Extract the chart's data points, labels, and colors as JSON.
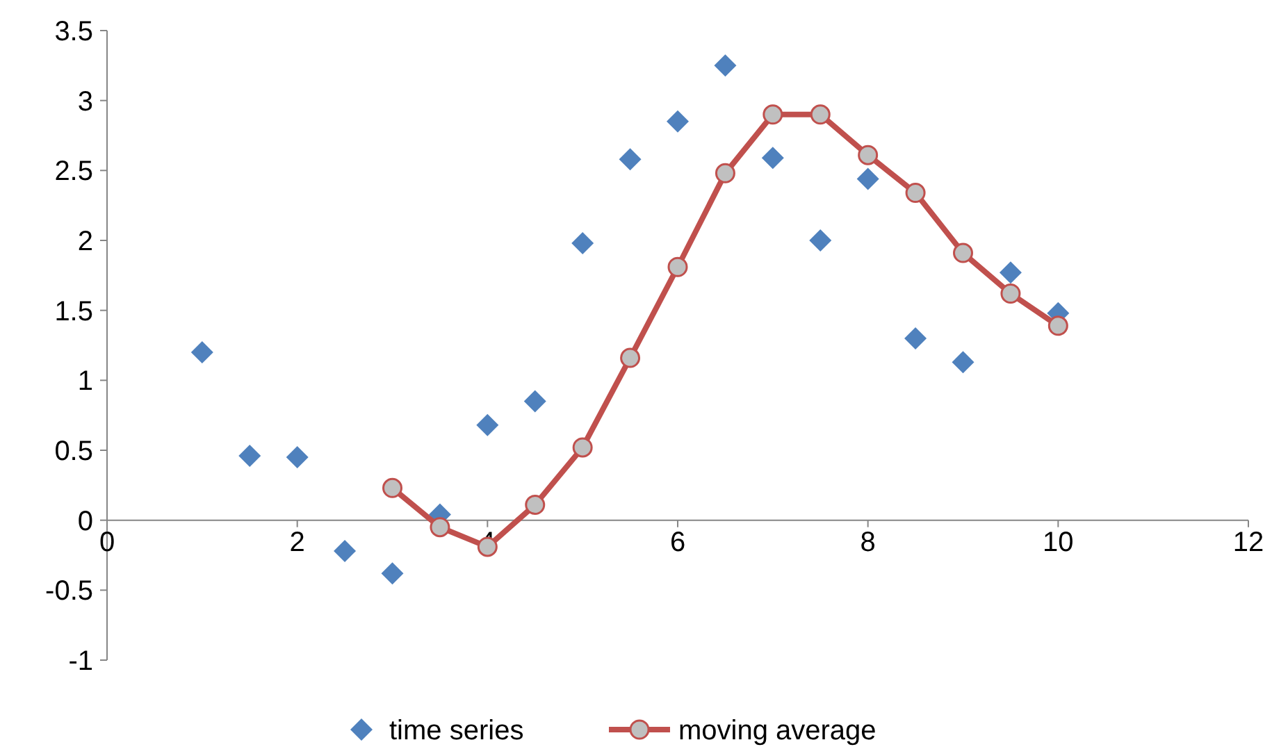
{
  "chart_data": {
    "type": "scatter",
    "xlim": [
      0,
      12
    ],
    "ylim": [
      -1,
      3.5
    ],
    "xticks": [
      0,
      2,
      4,
      6,
      8,
      10,
      12
    ],
    "yticks": [
      -1,
      -0.5,
      0,
      0.5,
      1,
      1.5,
      2,
      2.5,
      3,
      3.5
    ],
    "grid": false,
    "legend": "bottom",
    "series": [
      {
        "name": "time series",
        "marker": "diamond",
        "color": "#4f81bd",
        "x": [
          1,
          1.5,
          2,
          2.5,
          3,
          3.5,
          4,
          4.5,
          5,
          5.5,
          6,
          6.5,
          7,
          7.5,
          8,
          8.5,
          9,
          9.5,
          10
        ],
        "values": [
          1.2,
          0.46,
          0.45,
          -0.22,
          -0.38,
          0.04,
          0.68,
          0.85,
          1.98,
          2.58,
          2.85,
          3.25,
          2.59,
          2.0,
          2.44,
          1.3,
          1.13,
          1.77,
          1.48
        ]
      },
      {
        "name": "moving average",
        "type": "line",
        "marker": "circle",
        "line_style": "solid",
        "color": "#c0504d",
        "x": [
          3,
          3.5,
          4,
          4.5,
          5,
          5.5,
          6,
          6.5,
          7,
          7.5,
          8,
          8.5,
          9,
          9.5,
          10
        ],
        "values": [
          0.23,
          -0.05,
          -0.19,
          0.11,
          0.52,
          1.16,
          1.81,
          2.48,
          2.9,
          2.9,
          2.61,
          2.34,
          1.91,
          1.62,
          1.39
        ]
      }
    ]
  }
}
